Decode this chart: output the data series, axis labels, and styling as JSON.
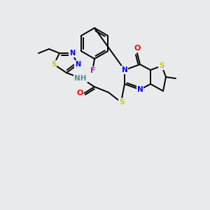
{
  "bg_color": "#e8eaeb",
  "atom_colors": {
    "N": "#0000ff",
    "S": "#cccc00",
    "O": "#ff0000",
    "F": "#cc00cc",
    "C": "#000000",
    "H": "#4a9090"
  },
  "bond_color": "#000000",
  "figsize": [
    3.0,
    3.0
  ],
  "dpi": 100
}
